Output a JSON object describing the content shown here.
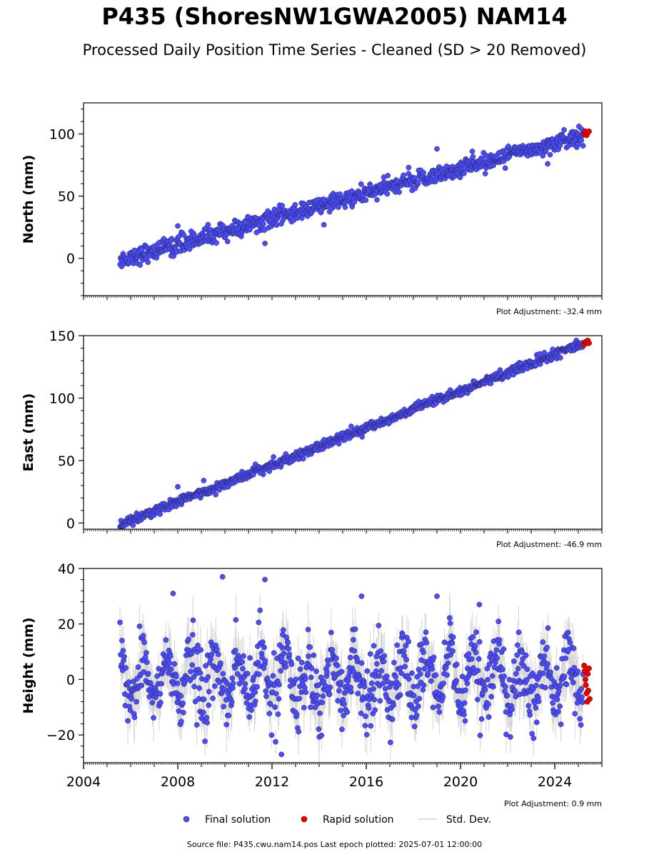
{
  "title": "P435 (ShoresNW1GWA2005) NAM14",
  "subtitle": "Processed Daily Position Time Series - Cleaned (SD > 20 Removed)",
  "footer": "Source file: P435.cwu.nam14.pos  Last epoch plotted: 2025-07-01 12:00:00",
  "colors": {
    "final": "#4c4cff",
    "rapid": "#ee0000",
    "std": "#c8c8c8",
    "edge": "#222244"
  },
  "legend": {
    "final": "Final solution",
    "rapid": "Rapid solution",
    "std": "Std. Dev."
  },
  "chart_data": [
    {
      "type": "scatter",
      "ylabel": "North (mm)",
      "adjustment": "Plot Adjustment: -32.4 mm",
      "xlim": [
        2004.0,
        2026.0
      ],
      "ylim": [
        -30,
        125
      ],
      "yticks": [
        0,
        50,
        100
      ],
      "ytick_labels": [
        "0",
        "50",
        "100"
      ],
      "show_xtick_labels": false,
      "series": [
        {
          "name": "Final solution",
          "trend": {
            "start": [
              2005.6,
              -1
            ],
            "end": [
              2025.2,
              99
            ]
          },
          "scatter": 3.5
        },
        {
          "name": "Rapid solution",
          "x": [
            2025.25,
            2025.3,
            2025.35,
            2025.4,
            2025.45
          ],
          "y": [
            100,
            102,
            99,
            101,
            102
          ]
        }
      ],
      "outliers": {
        "x": [
          2008.0,
          2011.7,
          2014.2,
          2017.8,
          2019.0,
          2020.5,
          2023.7
        ],
        "y": [
          26,
          12,
          27,
          73,
          88,
          86,
          76
        ]
      }
    },
    {
      "type": "scatter",
      "ylabel": "East (mm)",
      "adjustment": "Plot Adjustment: -46.9 mm",
      "xlim": [
        2004.0,
        2026.0
      ],
      "ylim": [
        -5,
        150
      ],
      "yticks": [
        0,
        50,
        100,
        150
      ],
      "ytick_labels": [
        "0",
        "50",
        "100",
        "150"
      ],
      "show_xtick_labels": false,
      "series": [
        {
          "name": "Final solution",
          "trend": {
            "start": [
              2005.6,
              -1
            ],
            "end": [
              2025.2,
              144
            ]
          },
          "scatter": 1.8
        },
        {
          "name": "Rapid solution",
          "x": [
            2025.25,
            2025.3,
            2025.35,
            2025.4,
            2025.45
          ],
          "y": [
            143,
            145,
            144,
            146,
            144
          ]
        }
      ],
      "outliers": {
        "x": [
          2008.0,
          2009.1,
          2011.5
        ],
        "y": [
          29,
          34,
          40
        ]
      }
    },
    {
      "type": "scatter",
      "ylabel": "Height (mm)",
      "adjustment": "Plot Adjustment: 0.9 mm",
      "xlim": [
        2004.0,
        2026.0
      ],
      "ylim": [
        -30,
        40
      ],
      "yticks": [
        -20,
        0,
        20,
        40
      ],
      "ytick_labels": [
        "−20",
        "0",
        "20",
        "40"
      ],
      "xticks": [
        2004,
        2008,
        2012,
        2016,
        2020,
        2024
      ],
      "xtick_labels": [
        "2004",
        "2008",
        "2012",
        "2016",
        "2020",
        "2024"
      ],
      "show_xtick_labels": true,
      "series": [
        {
          "name": "Final solution",
          "seasonal_amplitude": 8,
          "scatter": 6
        },
        {
          "name": "Rapid solution",
          "x": [
            2025.25,
            2025.27,
            2025.3,
            2025.32,
            2025.35,
            2025.38,
            2025.4,
            2025.42,
            2025.45,
            2025.48
          ],
          "y": [
            5,
            3,
            0,
            -2,
            -5,
            -8,
            2,
            -4,
            4,
            -7
          ]
        }
      ],
      "outliers": {
        "x": [
          2007.8,
          2009.9,
          2011.7,
          2019.0,
          2020.8,
          2015.8,
          2012.4
        ],
        "y": [
          31,
          37,
          36,
          30,
          27,
          30,
          -27
        ]
      }
    }
  ]
}
